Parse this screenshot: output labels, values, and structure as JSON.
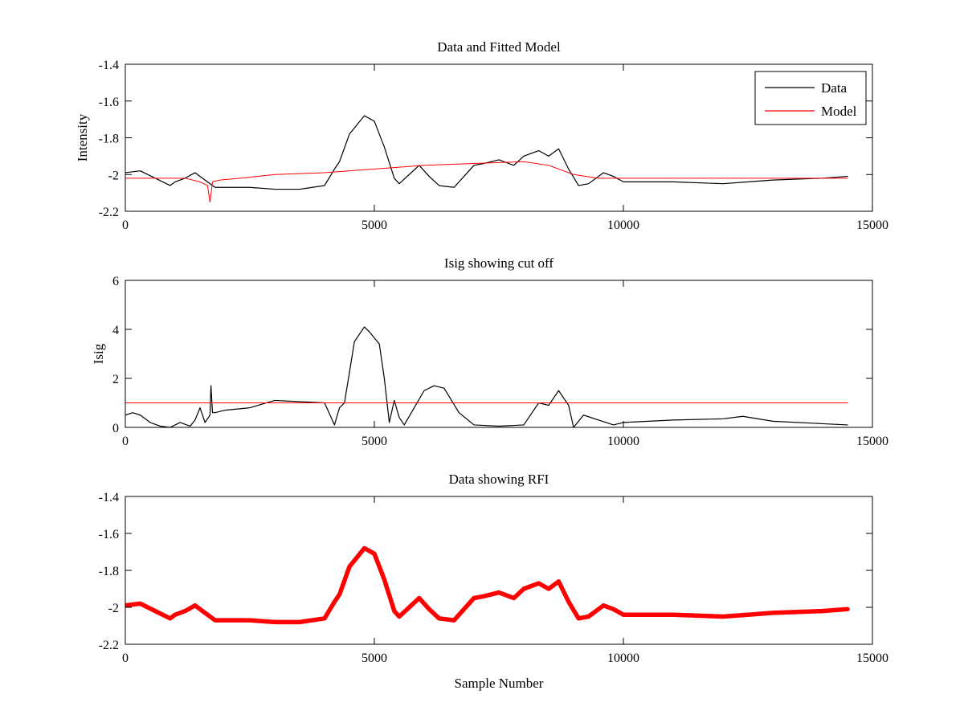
{
  "chart_data": [
    {
      "type": "line",
      "title": "Data and Fitted Model",
      "xlabel": "",
      "ylabel": "Intensity",
      "xlim": [
        0,
        15000
      ],
      "ylim": [
        -2.2,
        -1.4
      ],
      "xticks": [
        0,
        5000,
        10000,
        15000
      ],
      "yticks": [
        -2.2,
        -2,
        -1.8,
        -1.6,
        -1.4
      ],
      "xtick_labels": [
        "0",
        "5000",
        "10000",
        "15000"
      ],
      "ytick_labels": [
        "-2.2",
        "-2",
        "-1.8",
        "-1.6",
        "-1.4"
      ],
      "grid": false,
      "legend_position": "top-right",
      "series": [
        {
          "name": "Data",
          "color": "#000000",
          "x": [
            0,
            300,
            600,
            900,
            1000,
            1200,
            1400,
            1600,
            1800,
            2000,
            2500,
            3000,
            3500,
            4000,
            4200,
            4300,
            4500,
            4800,
            5000,
            5200,
            5400,
            5500,
            5700,
            5900,
            6100,
            6300,
            6600,
            6800,
            7000,
            7200,
            7500,
            7800,
            8000,
            8300,
            8500,
            8700,
            8900,
            9100,
            9300,
            9600,
            9800,
            10000,
            11000,
            12000,
            12500,
            13000,
            14000,
            14500
          ],
          "y": [
            -1.99,
            -1.98,
            -2.02,
            -2.06,
            -2.04,
            -2.02,
            -1.99,
            -2.03,
            -2.07,
            -2.07,
            -2.07,
            -2.08,
            -2.08,
            -2.06,
            -1.97,
            -1.93,
            -1.78,
            -1.68,
            -1.71,
            -1.85,
            -2.02,
            -2.05,
            -2.0,
            -1.95,
            -2.01,
            -2.06,
            -2.07,
            -2.01,
            -1.95,
            -1.94,
            -1.92,
            -1.95,
            -1.9,
            -1.87,
            -1.9,
            -1.86,
            -1.97,
            -2.06,
            -2.05,
            -1.99,
            -2.01,
            -2.04,
            -2.04,
            -2.05,
            -2.04,
            -2.03,
            -2.02,
            -2.01
          ]
        },
        {
          "name": "Model",
          "color": "#ff0000",
          "x": [
            0,
            1200,
            1500,
            1650,
            1700,
            1750,
            1900,
            2300,
            3000,
            4000,
            5000,
            6000,
            7000,
            8000,
            8500,
            9000,
            9500,
            10000,
            14500
          ],
          "y": [
            -2.02,
            -2.02,
            -2.04,
            -2.06,
            -2.15,
            -2.04,
            -2.03,
            -2.02,
            -2.0,
            -1.99,
            -1.97,
            -1.95,
            -1.94,
            -1.93,
            -1.95,
            -2.0,
            -2.02,
            -2.02,
            -2.02
          ]
        }
      ]
    },
    {
      "type": "line",
      "title": "Isig showing cut off",
      "xlabel": "",
      "ylabel": "Isig",
      "xlim": [
        0,
        15000
      ],
      "ylim": [
        0,
        6
      ],
      "xticks": [
        0,
        5000,
        10000,
        15000
      ],
      "yticks": [
        0,
        2,
        4,
        6
      ],
      "xtick_labels": [
        "0",
        "5000",
        "10000",
        "15000"
      ],
      "ytick_labels": [
        "0",
        "2",
        "4",
        "6"
      ],
      "grid": false,
      "series": [
        {
          "color": "#000000",
          "x": [
            0,
            150,
            300,
            500,
            700,
            900,
            1100,
            1300,
            1400,
            1500,
            1600,
            1700,
            1720,
            1750,
            1800,
            2000,
            2500,
            3000,
            3500,
            4000,
            4200,
            4300,
            4400,
            4600,
            4800,
            4900,
            5100,
            5200,
            5300,
            5400,
            5500,
            5600,
            5800,
            6000,
            6200,
            6400,
            6700,
            7000,
            7500,
            8000,
            8300,
            8500,
            8700,
            8900,
            9000,
            9200,
            9500,
            9800,
            10000,
            11000,
            12000,
            12400,
            13000,
            14000,
            14500
          ],
          "y": [
            0.5,
            0.6,
            0.5,
            0.2,
            0.05,
            0.0,
            0.2,
            0.05,
            0.3,
            0.8,
            0.2,
            0.5,
            1.7,
            0.6,
            0.6,
            0.7,
            0.8,
            1.1,
            1.05,
            1.0,
            0.1,
            0.8,
            1.0,
            3.5,
            4.1,
            3.9,
            3.4,
            2.0,
            0.2,
            1.1,
            0.4,
            0.1,
            0.8,
            1.5,
            1.7,
            1.6,
            0.6,
            0.1,
            0.05,
            0.1,
            1.0,
            0.9,
            1.5,
            0.9,
            0.0,
            0.5,
            0.3,
            0.1,
            0.2,
            0.3,
            0.35,
            0.45,
            0.25,
            0.15,
            0.1
          ]
        },
        {
          "color": "#ff0000",
          "x": [
            0,
            14500
          ],
          "y": [
            1.0,
            1.0
          ]
        }
      ]
    },
    {
      "type": "line",
      "title": "Data showing RFI",
      "xlabel": "Sample Number",
      "ylabel": "",
      "xlim": [
        0,
        15000
      ],
      "ylim": [
        -2.2,
        -1.4
      ],
      "xticks": [
        0,
        5000,
        10000,
        15000
      ],
      "yticks": [
        -2.2,
        -2,
        -1.8,
        -1.6,
        -1.4
      ],
      "xtick_labels": [
        "0",
        "5000",
        "10000",
        "15000"
      ],
      "ytick_labels": [
        "-2.2",
        "-2",
        "-1.8",
        "-1.6",
        "-1.4"
      ],
      "grid": false,
      "series": [
        {
          "color": "#ff0000",
          "x": [
            0,
            300,
            600,
            900,
            1000,
            1200,
            1400,
            1600,
            1800,
            2000,
            2500,
            3000,
            3500,
            4000,
            4200,
            4300,
            4500,
            4800,
            5000,
            5200,
            5400,
            5500,
            5700,
            5900,
            6100,
            6300,
            6600,
            6800,
            7000,
            7200,
            7500,
            7800,
            8000,
            8300,
            8500,
            8700,
            8900,
            9100,
            9300,
            9600,
            9800,
            10000,
            11000,
            12000,
            12500,
            13000,
            14000,
            14500
          ],
          "y": [
            -1.99,
            -1.98,
            -2.02,
            -2.06,
            -2.04,
            -2.02,
            -1.99,
            -2.03,
            -2.07,
            -2.07,
            -2.07,
            -2.08,
            -2.08,
            -2.06,
            -1.97,
            -1.93,
            -1.78,
            -1.68,
            -1.71,
            -1.85,
            -2.02,
            -2.05,
            -2.0,
            -1.95,
            -2.01,
            -2.06,
            -2.07,
            -2.01,
            -1.95,
            -1.94,
            -1.92,
            -1.95,
            -1.9,
            -1.87,
            -1.9,
            -1.86,
            -1.97,
            -2.06,
            -2.05,
            -1.99,
            -2.01,
            -2.04,
            -2.04,
            -2.05,
            -2.04,
            -2.03,
            -2.02,
            -2.01
          ]
        }
      ]
    }
  ]
}
